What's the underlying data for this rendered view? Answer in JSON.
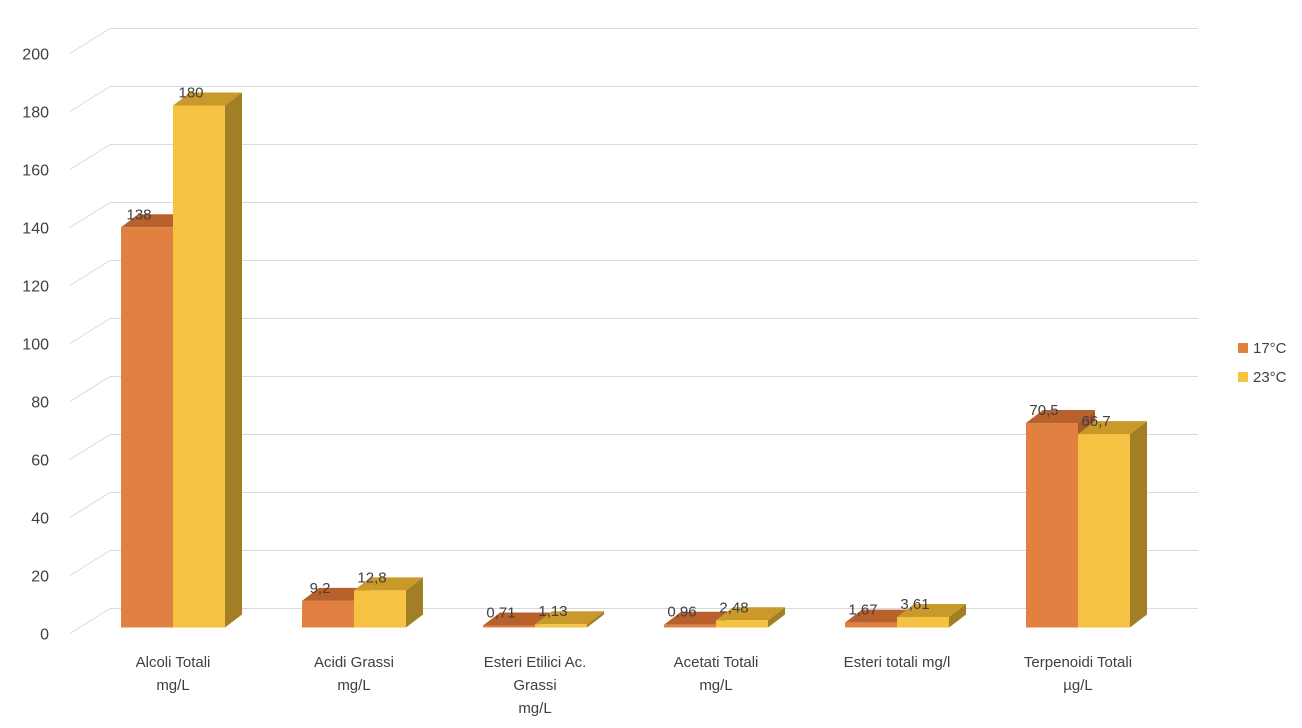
{
  "chart_data": {
    "type": "bar",
    "categories": [
      [
        "Alcoli Totali",
        "mg/L"
      ],
      [
        "Acidi Grassi",
        "mg/L"
      ],
      [
        "Esteri Etilici Ac.",
        "Grassi",
        "mg/L"
      ],
      [
        "Acetati Totali",
        "mg/L"
      ],
      [
        "Esteri totali mg/l"
      ],
      [
        "Terpenoidi Totali",
        "µg/L"
      ]
    ],
    "series": [
      {
        "name": "17°C",
        "values": [
          138,
          9.2,
          0.71,
          0.96,
          1.67,
          70.5
        ],
        "labels": [
          "138",
          "9,2",
          "0,71",
          "0,96",
          "1,67",
          "70,5"
        ],
        "color": "#E08142",
        "top_color": "#B8612C",
        "side_color": "#A85A28"
      },
      {
        "name": "23°C",
        "values": [
          180,
          12.8,
          1.13,
          2.48,
          3.61,
          66.7
        ],
        "labels": [
          "180",
          "12,8",
          "1,13",
          "2,48",
          "3,61",
          "66,7"
        ],
        "color": "#F6C243",
        "top_color": "#C99A2A",
        "side_color": "#A27E24"
      }
    ],
    "y_ticks": [
      "0",
      "20",
      "40",
      "60",
      "80",
      "100",
      "120",
      "140",
      "160",
      "180",
      "200"
    ],
    "ylim": [
      0,
      210
    ],
    "grid": true,
    "legend": "right",
    "style": "3d-clustered-column"
  }
}
